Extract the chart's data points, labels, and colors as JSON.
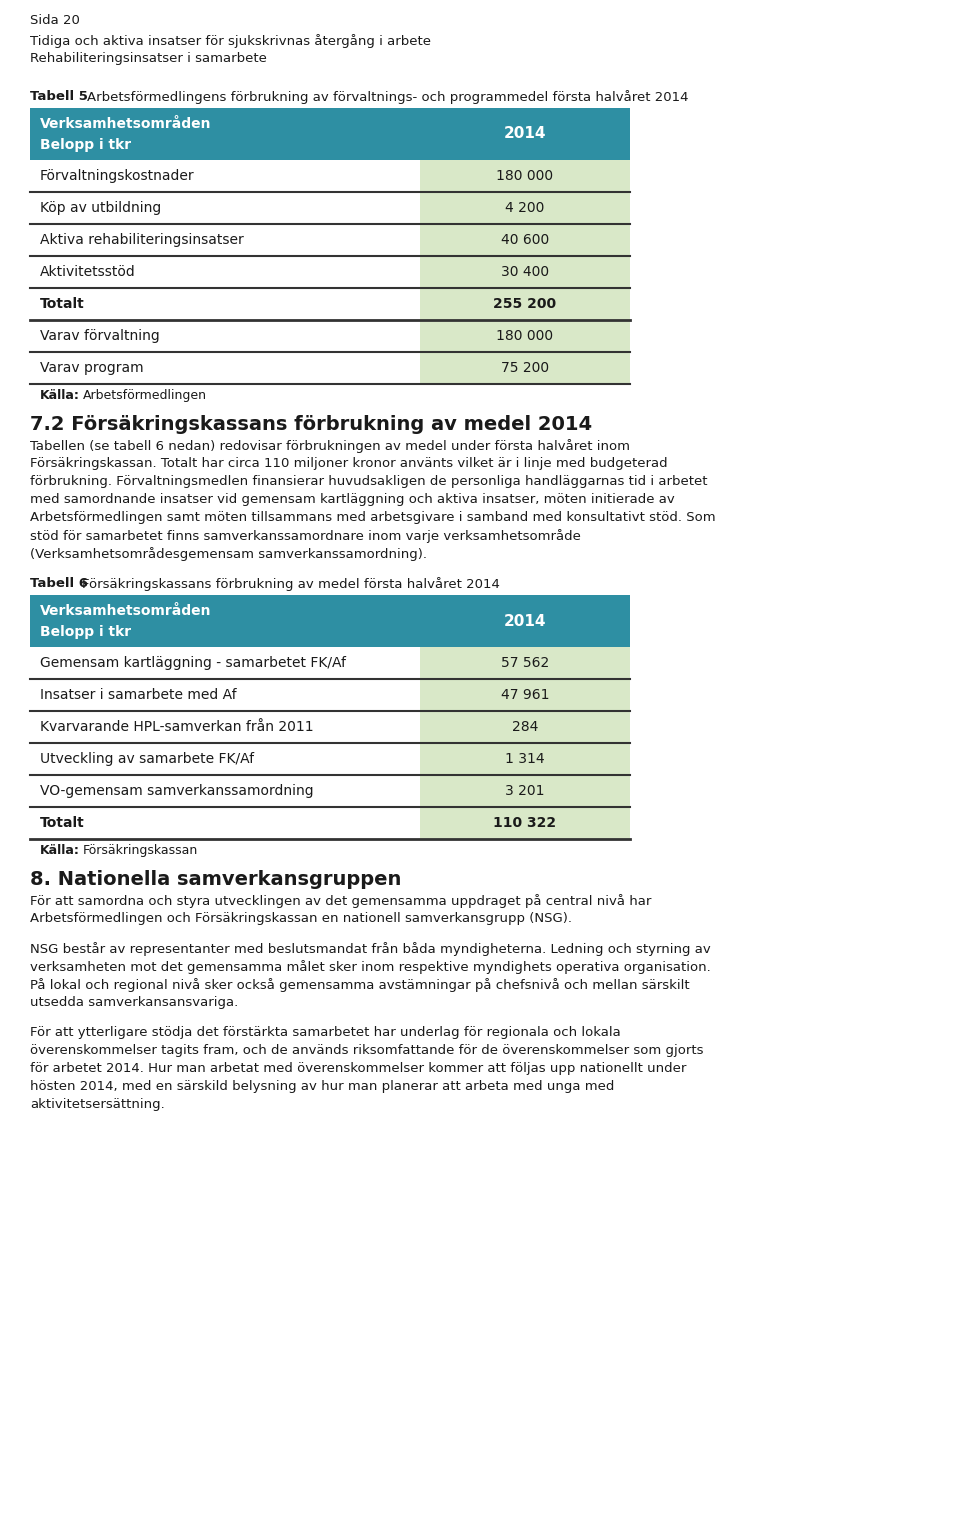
{
  "page_bg": "#ffffff",
  "header_line1": "Sida 20",
  "header_line2": "Tidiga och aktiva insatser för sjukskrivnas återgång i arbete",
  "header_line3": "Rehabiliteringsinsatser i samarbete",
  "tabell5_header_bg": "#2e8fa3",
  "tabell5_header_text": "#ffffff",
  "tabell5_value_bg": "#d9e8c8",
  "tabell5_rows": [
    [
      "Förvaltningskostnader",
      "180 000"
    ],
    [
      "Köp av utbildning",
      "4 200"
    ],
    [
      "Aktiva rehabiliteringsinsatser",
      "40 600"
    ],
    [
      "Aktivitetsstöd",
      "30 400"
    ]
  ],
  "tabell5_total_row": [
    "Totalt",
    "255 200"
  ],
  "tabell5_extra_rows": [
    [
      "Varav förvaltning",
      "180 000"
    ],
    [
      "Varav program",
      "75 200"
    ]
  ],
  "tabell6_header_bg": "#2e8fa3",
  "tabell6_header_text": "#ffffff",
  "tabell6_value_bg": "#d9e8c8",
  "tabell6_rows": [
    [
      "Gemensam kartläggning - samarbetet FK/Af",
      "57 562"
    ],
    [
      "Insatser i samarbete med Af",
      "47 961"
    ],
    [
      "Kvarvarande HPL-samverkan från 2011",
      "284"
    ],
    [
      "Utveckling av samarbete FK/Af",
      "1 314"
    ],
    [
      "VO-gemensam samverkanssamordning",
      "3 201"
    ]
  ],
  "tabell6_total_row": [
    "Totalt",
    "110 322"
  ],
  "section_body_lines": [
    "Tabellen (se tabell 6 nedan) redovisar förbrukningen av medel under första halvåret inom",
    "Försäkringskassan. Totalt har circa 110 miljoner kronor använts vilket är i linje med budgeterad",
    "förbrukning. Förvaltningsmedlen finansierar huvudsakligen de personliga handläggarnas tid i arbetet",
    "med samordnande insatser vid gemensam kartläggning och aktiva insatser, möten initierade av",
    "Arbetsförmedlingen samt möten tillsammans med arbetsgivare i samband med konsultativt stöd. Som",
    "stöd för samarbetet finns samverkanssamordnare inom varje verksamhetsområde",
    "(Verksamhetsområdesgemensam samverkanssamordning)."
  ],
  "s2p1_lines": [
    "För att samordna och styra utvecklingen av det gemensamma uppdraget på central nivå har",
    "Arbetsförmedlingen och Försäkringskassan en nationell samverkansgrupp (NSG)."
  ],
  "s2p2_lines": [
    "NSG består av representanter med beslutsmandat från båda myndigheterna. Ledning och styrning av",
    "verksamheten mot det gemensamma målet sker inom respektive myndighets operativa organisation.",
    "På lokal och regional nivå sker också gemensamma avstämningar på chefsnivå och mellan särskilt",
    "utsedda samverkansansvariga."
  ],
  "s2p3_lines": [
    "För att ytterligare stödja det förstärkta samarbetet har underlag för regionala och lokala",
    "överenskommelser tagits fram, och de används riksomfattande för de överenskommelser som gjorts",
    "för arbetet 2014. Hur man arbetat med överenskommelser kommer att följas upp nationellt under",
    "hösten 2014, med en särskild belysning av hur man planerar att arbeta med unga med",
    "aktivitetsersättning."
  ]
}
